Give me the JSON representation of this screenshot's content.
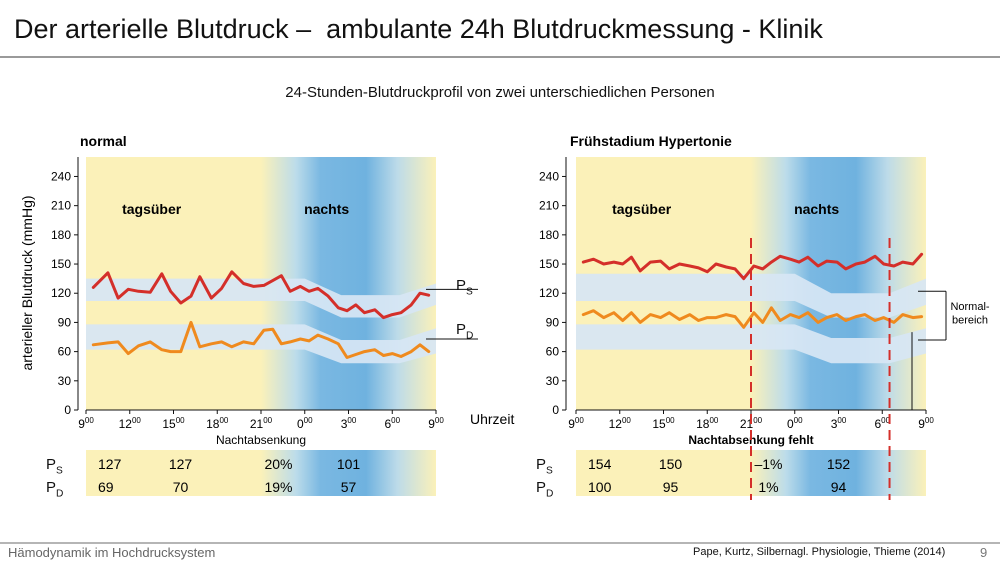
{
  "slide": {
    "title": "Der arterielle Blutdruck –  ambulante 24h Blutdruckmessung - Klinik",
    "subtitle": "24-Stunden-Blutdruckprofil von zwei unterschiedlichen Personen",
    "footer_left": "Hämodynamik im Hochdrucksystem",
    "footer_source": "Pape, Kurtz, Silbernagl. Physiologie, Thieme (2014)",
    "page_number": "9"
  },
  "shared": {
    "ylabel": "arterieller Blutdruck (mmHg)",
    "xlabel": "Uhrzeit",
    "y_ticks": [
      0,
      30,
      60,
      90,
      120,
      150,
      180,
      210,
      240
    ],
    "ylim": [
      0,
      260
    ],
    "x_ticks": [
      {
        "h": "9",
        "m": "00"
      },
      {
        "h": "12",
        "m": "00"
      },
      {
        "h": "15",
        "m": "00"
      },
      {
        "h": "18",
        "m": "00"
      },
      {
        "h": "21",
        "m": "00"
      },
      {
        "h": "0",
        "m": "00"
      },
      {
        "h": "3",
        "m": "00"
      },
      {
        "h": "6",
        "m": "00"
      },
      {
        "h": "9",
        "m": "00"
      }
    ],
    "band_label_day": "tagsüber",
    "band_label_night": "nachts",
    "normal_range_label": [
      "Normal-",
      "bereich"
    ],
    "ps_label": {
      "main": "P",
      "sub": "S"
    },
    "pd_label": {
      "main": "P",
      "sub": "D"
    },
    "colors": {
      "systolic": "#d42f2a",
      "diastolic": "#ef8a1e",
      "normal_band": "#d7e6f4",
      "day_band": "#fbf1b9",
      "night_band": "#6fb2df",
      "marker": "#d42f2a"
    }
  },
  "chart_data": [
    {
      "type": "line",
      "title": "normal",
      "caption": "Nachtabsenkung",
      "x_hours": [
        0.5,
        1.5,
        2.2,
        2.9,
        3.6,
        4.4,
        5.2,
        5.8,
        6.5,
        7.2,
        7.8,
        8.6,
        9.3,
        10.0,
        10.8,
        11.5,
        12.2,
        12.8,
        13.4,
        14.0,
        14.7,
        15.3,
        15.9,
        16.6,
        17.3,
        17.9,
        18.5,
        19.1,
        19.8,
        20.4,
        21.0,
        21.6,
        22.3,
        22.9,
        23.5
      ],
      "series": [
        {
          "values": [
            126,
            141,
            115,
            124,
            122,
            121,
            140,
            122,
            110,
            117,
            137,
            115,
            125,
            142,
            130,
            127,
            128,
            133,
            138,
            122,
            127,
            122,
            125,
            117,
            105,
            102,
            108,
            100,
            103,
            95,
            98,
            100,
            108,
            120,
            118
          ]
        },
        {
          "values": [
            67,
            69,
            70,
            58,
            66,
            70,
            62,
            60,
            60,
            90,
            65,
            68,
            70,
            65,
            70,
            68,
            82,
            83,
            68,
            70,
            73,
            71,
            77,
            73,
            68,
            54,
            57,
            60,
            62,
            56,
            58,
            55,
            60,
            67,
            60
          ]
        }
      ],
      "normal_band_upper_sys": [
        [
          0,
          135
        ],
        [
          15,
          135
        ],
        [
          17.5,
          118
        ],
        [
          21.5,
          118
        ],
        [
          24,
          130
        ]
      ],
      "normal_band_lower_sys": [
        [
          0,
          112
        ],
        [
          15,
          112
        ],
        [
          17.5,
          95
        ],
        [
          21.5,
          95
        ],
        [
          24,
          108
        ]
      ],
      "normal_band_upper_dia": [
        [
          0,
          88
        ],
        [
          15,
          88
        ],
        [
          17.5,
          72
        ],
        [
          21.5,
          72
        ],
        [
          24,
          84
        ]
      ],
      "normal_band_lower_dia": [
        [
          0,
          62
        ],
        [
          15,
          62
        ],
        [
          17.5,
          48
        ],
        [
          21.5,
          48
        ],
        [
          24,
          58
        ]
      ],
      "table": {
        "ps": [
          "127",
          "127",
          "20%",
          "101"
        ],
        "pd": [
          "69",
          "70",
          "19%",
          "57"
        ]
      }
    },
    {
      "type": "line",
      "title": "Frühstadium Hypertonie",
      "caption": "Nachtabsenkung fehlt",
      "x_hours": [
        0.5,
        1.2,
        1.9,
        2.6,
        3.2,
        3.8,
        4.4,
        5.1,
        5.8,
        6.4,
        7.1,
        7.8,
        8.4,
        9.0,
        9.6,
        10.3,
        10.9,
        11.5,
        12.2,
        12.8,
        13.4,
        14.0,
        14.7,
        15.3,
        15.9,
        16.6,
        17.2,
        17.9,
        18.5,
        19.2,
        19.8,
        20.5,
        21.1,
        21.8,
        22.4,
        23.1,
        23.7
      ],
      "series": [
        {
          "values": [
            152,
            155,
            150,
            152,
            150,
            157,
            143,
            152,
            153,
            145,
            150,
            148,
            146,
            142,
            150,
            147,
            145,
            135,
            148,
            145,
            152,
            158,
            155,
            152,
            157,
            148,
            153,
            152,
            145,
            150,
            152,
            158,
            150,
            148,
            152,
            150,
            160
          ]
        },
        {
          "values": [
            98,
            102,
            95,
            100,
            92,
            100,
            90,
            98,
            95,
            100,
            93,
            98,
            92,
            95,
            95,
            98,
            96,
            85,
            100,
            90,
            105,
            92,
            98,
            95,
            100,
            90,
            95,
            98,
            92,
            96,
            98,
            92,
            95,
            90,
            98,
            95,
            96
          ]
        }
      ],
      "normal_band_upper_sys": [
        [
          0,
          140
        ],
        [
          15,
          140
        ],
        [
          17.5,
          120
        ],
        [
          21.5,
          120
        ],
        [
          24,
          135
        ]
      ],
      "normal_band_lower_sys": [
        [
          0,
          112
        ],
        [
          15,
          112
        ],
        [
          17.5,
          95
        ],
        [
          21.5,
          95
        ],
        [
          24,
          108
        ]
      ],
      "normal_band_upper_dia": [
        [
          0,
          88
        ],
        [
          15,
          88
        ],
        [
          17.5,
          74
        ],
        [
          21.5,
          74
        ],
        [
          24,
          84
        ]
      ],
      "normal_band_lower_dia": [
        [
          0,
          62
        ],
        [
          15,
          62
        ],
        [
          17.5,
          48
        ],
        [
          21.5,
          48
        ],
        [
          24,
          58
        ]
      ],
      "table": {
        "ps": [
          "154",
          "150",
          "–1%",
          "152"
        ],
        "pd": [
          "100",
          "95",
          "1%",
          "94"
        ]
      }
    }
  ]
}
